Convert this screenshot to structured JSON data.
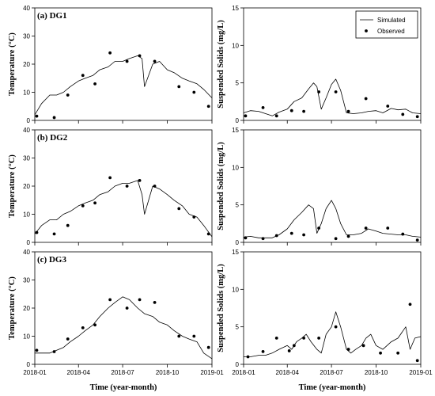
{
  "chart_data": [
    {
      "type": "line",
      "panel": "(a) DG1",
      "ylabel": "Temperature (°C)",
      "xlabel": "",
      "ylim": [
        0,
        40
      ],
      "yticks": [
        "0",
        "10",
        "20",
        "30",
        "40"
      ],
      "series": [
        {
          "role": "simulated",
          "x": [
            "2018-01-01",
            "2018-01-15",
            "2018-02-01",
            "2018-02-15",
            "2018-03-01",
            "2018-03-15",
            "2018-04-01",
            "2018-04-15",
            "2018-05-01",
            "2018-05-15",
            "2018-06-01",
            "2018-06-15",
            "2018-07-01",
            "2018-07-15",
            "2018-08-01",
            "2018-08-10",
            "2018-08-15",
            "2018-09-01",
            "2018-09-15",
            "2018-10-01",
            "2018-10-15",
            "2018-11-01",
            "2018-11-15",
            "2018-12-01",
            "2018-12-15",
            "2019-01-01"
          ],
          "y": [
            2,
            6,
            9,
            9,
            10,
            12,
            14,
            15,
            16,
            18,
            19,
            21,
            21,
            22,
            23,
            22,
            12,
            20,
            21,
            18,
            17,
            15,
            14,
            13,
            11,
            8
          ]
        },
        {
          "role": "observed",
          "x": [
            "2018-01-05",
            "2018-02-10",
            "2018-03-10",
            "2018-04-10",
            "2018-05-05",
            "2018-06-05",
            "2018-07-10",
            "2018-08-05",
            "2018-09-05",
            "2018-10-25",
            "2018-11-25",
            "2018-12-25"
          ],
          "y": [
            1.5,
            1,
            9,
            16,
            13,
            24,
            21,
            23,
            21,
            12,
            10,
            5
          ]
        }
      ]
    },
    {
      "type": "line",
      "panel": "",
      "ylabel": "Suspended Solids (mg/L)",
      "xlabel": "",
      "ylim": [
        0,
        15
      ],
      "yticks": [
        "0",
        "5",
        "10",
        "15"
      ],
      "legend": {
        "entries": [
          "Simulated",
          "Observed"
        ],
        "position": "top-right"
      },
      "series": [
        {
          "role": "simulated",
          "x": [
            "2018-01-01",
            "2018-01-15",
            "2018-02-01",
            "2018-03-01",
            "2018-03-15",
            "2018-04-01",
            "2018-04-15",
            "2018-05-01",
            "2018-05-15",
            "2018-05-25",
            "2018-06-01",
            "2018-06-10",
            "2018-06-20",
            "2018-07-01",
            "2018-07-10",
            "2018-07-20",
            "2018-08-01",
            "2018-08-15",
            "2018-09-01",
            "2018-09-15",
            "2018-10-01",
            "2018-10-15",
            "2018-11-01",
            "2018-11-15",
            "2018-12-01",
            "2018-12-15",
            "2019-01-01"
          ],
          "y": [
            1,
            1.3,
            1.2,
            0.6,
            1.1,
            1.5,
            2.5,
            3,
            4.2,
            5,
            4.5,
            1.5,
            3,
            4.8,
            5.5,
            4,
            1,
            0.9,
            1,
            1.2,
            1.3,
            1,
            1.6,
            1.4,
            1.5,
            1,
            0.9
          ]
        },
        {
          "role": "observed",
          "x": [
            "2018-01-05",
            "2018-02-10",
            "2018-03-10",
            "2018-04-10",
            "2018-05-05",
            "2018-06-05",
            "2018-07-10",
            "2018-08-05",
            "2018-09-10",
            "2018-10-25",
            "2018-11-25",
            "2018-12-25"
          ],
          "y": [
            0.6,
            1.7,
            0.6,
            1.3,
            1.2,
            3.8,
            3.8,
            1.2,
            2.9,
            1.9,
            0.8,
            0.5
          ]
        }
      ]
    },
    {
      "type": "line",
      "panel": "(b) DG2",
      "ylabel": "Temperature (°C)",
      "xlabel": "",
      "ylim": [
        0,
        40
      ],
      "yticks": [
        "0",
        "10",
        "20",
        "30",
        "40"
      ],
      "series": [
        {
          "role": "simulated",
          "x": [
            "2018-01-01",
            "2018-01-15",
            "2018-02-01",
            "2018-02-15",
            "2018-03-01",
            "2018-03-15",
            "2018-04-01",
            "2018-04-15",
            "2018-05-01",
            "2018-05-15",
            "2018-06-01",
            "2018-06-15",
            "2018-07-01",
            "2018-07-15",
            "2018-08-01",
            "2018-08-10",
            "2018-08-15",
            "2018-09-01",
            "2018-09-15",
            "2018-10-01",
            "2018-10-15",
            "2018-11-01",
            "2018-11-15",
            "2018-12-01",
            "2018-12-15",
            "2019-01-01"
          ],
          "y": [
            3,
            6,
            8,
            8,
            10,
            11,
            13,
            14,
            15,
            17,
            18,
            20,
            21,
            21,
            22,
            17,
            10,
            20,
            19,
            17,
            15,
            13,
            10,
            9,
            6,
            2
          ]
        },
        {
          "role": "observed",
          "x": [
            "2018-01-05",
            "2018-02-10",
            "2018-03-10",
            "2018-04-10",
            "2018-05-05",
            "2018-06-05",
            "2018-07-10",
            "2018-08-05",
            "2018-09-05",
            "2018-10-25",
            "2018-11-25",
            "2018-12-25"
          ],
          "y": [
            3.5,
            3,
            6,
            13,
            14,
            23,
            20,
            22,
            20,
            12,
            9,
            3
          ]
        }
      ]
    },
    {
      "type": "line",
      "panel": "",
      "ylabel": "Suspended Solids (mg/L)",
      "xlabel": "",
      "ylim": [
        0,
        15
      ],
      "yticks": [
        "0",
        "5",
        "10",
        "15"
      ],
      "series": [
        {
          "role": "simulated",
          "x": [
            "2018-01-01",
            "2018-01-15",
            "2018-02-01",
            "2018-03-01",
            "2018-03-15",
            "2018-04-01",
            "2018-04-15",
            "2018-05-01",
            "2018-05-15",
            "2018-05-25",
            "2018-06-01",
            "2018-06-10",
            "2018-06-20",
            "2018-07-01",
            "2018-07-10",
            "2018-07-20",
            "2018-08-01",
            "2018-08-15",
            "2018-09-01",
            "2018-09-15",
            "2018-10-01",
            "2018-10-15",
            "2018-11-01",
            "2018-11-15",
            "2018-12-01",
            "2018-12-15",
            "2019-01-01"
          ],
          "y": [
            0.7,
            0.8,
            0.6,
            0.6,
            1,
            1.8,
            3,
            4,
            5,
            4.5,
            1.2,
            2.5,
            4.5,
            5.6,
            4.5,
            2.5,
            1,
            1,
            1.2,
            1.8,
            1.5,
            1.2,
            1.1,
            1,
            1,
            0.8,
            0.7
          ]
        },
        {
          "role": "observed",
          "x": [
            "2018-01-05",
            "2018-02-10",
            "2018-03-10",
            "2018-04-10",
            "2018-05-05",
            "2018-06-05",
            "2018-07-10",
            "2018-08-05",
            "2018-09-10",
            "2018-10-25",
            "2018-11-25",
            "2018-12-25"
          ],
          "y": [
            0.6,
            0.5,
            0.9,
            1.2,
            1,
            1.9,
            0.5,
            0.8,
            1.9,
            1.9,
            1.1,
            0.3
          ]
        }
      ]
    },
    {
      "type": "line",
      "panel": "(c) DG3",
      "ylabel": "Temperature (°C)",
      "xlabel": "Time (year-month)",
      "ylim": [
        0,
        40
      ],
      "yticks": [
        "0",
        "10",
        "20",
        "30",
        "40"
      ],
      "xticks": [
        "2018-01",
        "2018-04",
        "2018-07",
        "2018-10",
        "2019-01"
      ],
      "series": [
        {
          "role": "simulated",
          "x": [
            "2018-01-01",
            "2018-01-15",
            "2018-02-01",
            "2018-02-15",
            "2018-03-01",
            "2018-03-15",
            "2018-04-01",
            "2018-04-15",
            "2018-05-01",
            "2018-05-15",
            "2018-06-01",
            "2018-06-15",
            "2018-07-01",
            "2018-07-15",
            "2018-08-01",
            "2018-08-15",
            "2018-09-01",
            "2018-09-15",
            "2018-10-01",
            "2018-10-15",
            "2018-11-01",
            "2018-11-15",
            "2018-12-01",
            "2018-12-15",
            "2019-01-01"
          ],
          "y": [
            4,
            4,
            4,
            5,
            6,
            8,
            10,
            12,
            14,
            17,
            20,
            22,
            24,
            23,
            20,
            18,
            17,
            15,
            14,
            12,
            10,
            9,
            8,
            4,
            2
          ]
        },
        {
          "role": "observed",
          "x": [
            "2018-01-05",
            "2018-02-10",
            "2018-03-10",
            "2018-04-10",
            "2018-05-05",
            "2018-06-05",
            "2018-07-10",
            "2018-08-05",
            "2018-09-05",
            "2018-10-25",
            "2018-11-25",
            "2018-12-25"
          ],
          "y": [
            5,
            4.5,
            9,
            13,
            14,
            23,
            20,
            23,
            22,
            10,
            10,
            6
          ]
        }
      ]
    },
    {
      "type": "line",
      "panel": "",
      "ylabel": "Suspended Solids (mg/L)",
      "xlabel": "Time (year-month)",
      "ylim": [
        0,
        15
      ],
      "yticks": [
        "0",
        "5",
        "10",
        "15"
      ],
      "xticks": [
        "2018-01",
        "2018-04",
        "2018-07",
        "2018-10",
        "2019-01"
      ],
      "series": [
        {
          "role": "simulated",
          "x": [
            "2018-01-01",
            "2018-01-15",
            "2018-02-01",
            "2018-02-15",
            "2018-03-01",
            "2018-03-15",
            "2018-04-01",
            "2018-04-10",
            "2018-04-20",
            "2018-05-01",
            "2018-05-10",
            "2018-05-20",
            "2018-06-01",
            "2018-06-10",
            "2018-06-20",
            "2018-07-01",
            "2018-07-10",
            "2018-07-20",
            "2018-08-01",
            "2018-08-10",
            "2018-08-20",
            "2018-09-01",
            "2018-09-10",
            "2018-09-20",
            "2018-10-01",
            "2018-10-15",
            "2018-11-01",
            "2018-11-15",
            "2018-12-01",
            "2018-12-10",
            "2018-12-20",
            "2019-01-01"
          ],
          "y": [
            1,
            1,
            1.2,
            1.2,
            1.5,
            2,
            2.5,
            2,
            3,
            3.5,
            4,
            3,
            2,
            1.5,
            4,
            5,
            7,
            5,
            2,
            1.5,
            2,
            2.5,
            3.5,
            4,
            2.5,
            2,
            3,
            3.5,
            5,
            2,
            3.5,
            3.7
          ]
        },
        {
          "role": "observed",
          "x": [
            "2018-01-10",
            "2018-02-10",
            "2018-03-10",
            "2018-04-05",
            "2018-04-15",
            "2018-05-05",
            "2018-06-05",
            "2018-07-10",
            "2018-08-05",
            "2018-09-05",
            "2018-10-10",
            "2018-11-15",
            "2018-12-10",
            "2018-12-25"
          ],
          "y": [
            1,
            1.7,
            3.5,
            1.8,
            2.5,
            3.5,
            3.5,
            5,
            2,
            2.5,
            1.5,
            1.5,
            8,
            0.5
          ]
        }
      ]
    }
  ]
}
